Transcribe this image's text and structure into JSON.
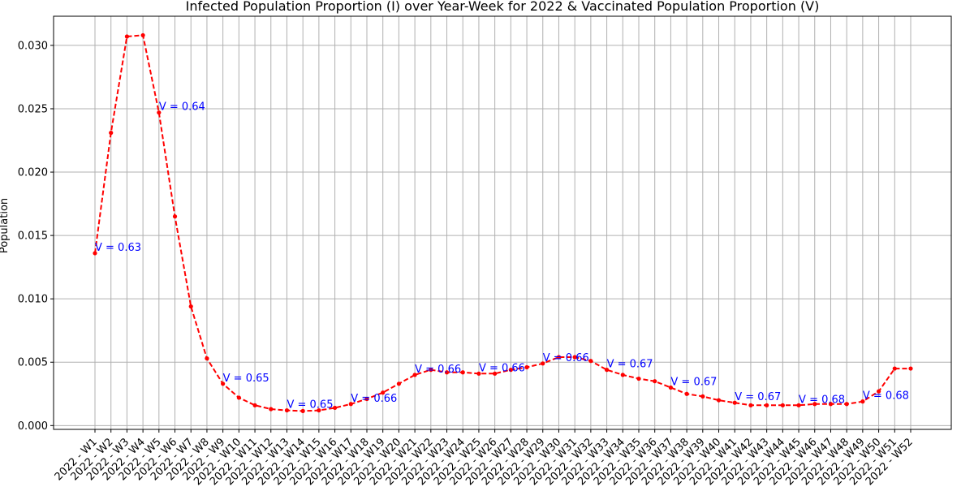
{
  "chart_data": {
    "type": "line",
    "title": "Infected Population Proportion (I) over Year-Week for 2022 & Vaccinated Population Proportion (V)",
    "xlabel": "",
    "ylabel": "Population",
    "ylim": [
      -0.0003,
      0.0323
    ],
    "yticks": [
      0.0,
      0.005,
      0.01,
      0.015,
      0.02,
      0.025,
      0.03
    ],
    "ytick_labels": [
      "0.000",
      "0.005",
      "0.010",
      "0.015",
      "0.020",
      "0.025",
      "0.030"
    ],
    "grid": true,
    "categories": [
      "2022 - W1",
      "2022 - W2",
      "2022 - W3",
      "2022 - W4",
      "2022 - W5",
      "2022 - W6",
      "2022 - W7",
      "2022 - W8",
      "2022 - W9",
      "2022 - W10",
      "2022 - W11",
      "2022 - W12",
      "2022 - W13",
      "2022 - W14",
      "2022 - W15",
      "2022 - W16",
      "2022 - W17",
      "2022 - W18",
      "2022 - W19",
      "2022 - W20",
      "2022 - W21",
      "2022 - W22",
      "2022 - W23",
      "2022 - W24",
      "2022 - W25",
      "2022 - W26",
      "2022 - W27",
      "2022 - W28",
      "2022 - W29",
      "2022 - W30",
      "2022 - W31",
      "2022 - W32",
      "2022 - W33",
      "2022 - W34",
      "2022 - W35",
      "2022 - W36",
      "2022 - W37",
      "2022 - W38",
      "2022 - W39",
      "2022 - W40",
      "2022 - W41",
      "2022 - W42",
      "2022 - W43",
      "2022 - W44",
      "2022 - W45",
      "2022 - W46",
      "2022 - W47",
      "2022 - W48",
      "2022 - W49",
      "2022 - W50",
      "2022 - W51",
      "2022 - W52"
    ],
    "series": [
      {
        "color": "#ff0000",
        "style": "dashed",
        "values": [
          0.0136,
          0.0231,
          0.0307,
          0.0308,
          0.0247,
          0.0165,
          0.0094,
          0.0053,
          0.0033,
          0.0022,
          0.0016,
          0.0013,
          0.0012,
          0.00115,
          0.0012,
          0.0014,
          0.0017,
          0.0021,
          0.0026,
          0.0033,
          0.004,
          0.0044,
          0.0042,
          0.0042,
          0.0041,
          0.0041,
          0.0044,
          0.0046,
          0.0049,
          0.0054,
          0.0054,
          0.0051,
          0.0044,
          0.004,
          0.0037,
          0.0035,
          0.003,
          0.0025,
          0.0023,
          0.002,
          0.0018,
          0.0016,
          0.0016,
          0.0016,
          0.0016,
          0.0017,
          0.0017,
          0.0017,
          0.0019,
          0.0027,
          0.0045,
          0.0045
        ]
      }
    ],
    "annotations": [
      {
        "week_index": 0,
        "text": "V = 0.63",
        "y": 0.0136
      },
      {
        "week_index": 4,
        "text": "V = 0.64",
        "y": 0.0247
      },
      {
        "week_index": 8,
        "text": "V = 0.65",
        "y": 0.0033
      },
      {
        "week_index": 12,
        "text": "V = 0.65",
        "y": 0.0012
      },
      {
        "week_index": 16,
        "text": "V = 0.66",
        "y": 0.0017
      },
      {
        "week_index": 20,
        "text": "V = 0.66",
        "y": 0.004
      },
      {
        "week_index": 24,
        "text": "V = 0.66",
        "y": 0.0041
      },
      {
        "week_index": 28,
        "text": "V = 0.66",
        "y": 0.0049
      },
      {
        "week_index": 32,
        "text": "V = 0.67",
        "y": 0.0044
      },
      {
        "week_index": 36,
        "text": "V = 0.67",
        "y": 0.003
      },
      {
        "week_index": 40,
        "text": "V = 0.67",
        "y": 0.0018
      },
      {
        "week_index": 44,
        "text": "V = 0.68",
        "y": 0.0016
      },
      {
        "week_index": 48,
        "text": "V = 0.68",
        "y": 0.0019
      }
    ]
  }
}
